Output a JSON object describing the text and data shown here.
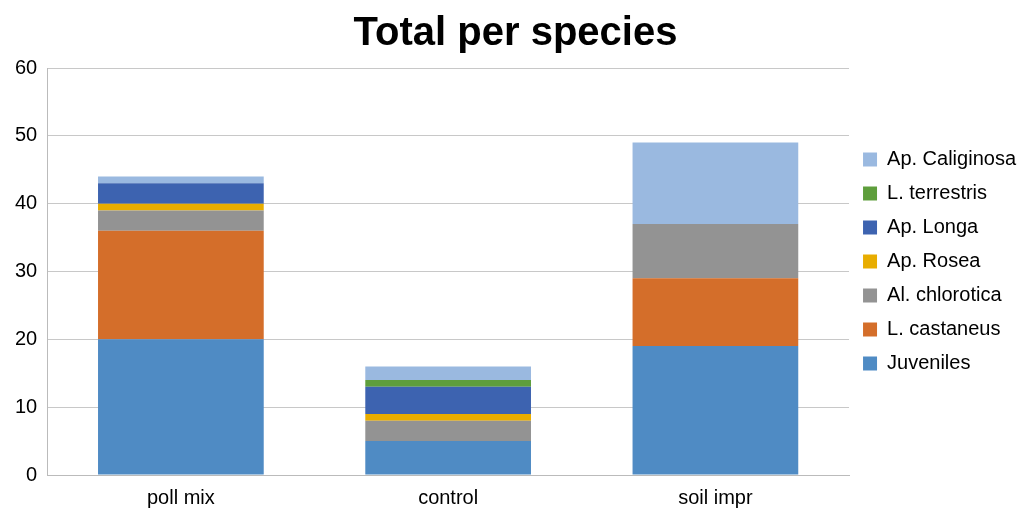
{
  "chart_data": {
    "type": "bar",
    "title": "Total per species",
    "categories": [
      "poll mix",
      "control",
      "soil impr"
    ],
    "stacked": true,
    "ylim": [
      0,
      60
    ],
    "yticks": [
      0,
      10,
      20,
      30,
      40,
      50,
      60
    ],
    "grid": "y",
    "legend": "right",
    "series": [
      {
        "name": "Juveniles",
        "color": "#4f8bc4",
        "values": [
          20,
          5,
          19
        ]
      },
      {
        "name": "L. castaneus",
        "color": "#d46e2a",
        "values": [
          16,
          0,
          10
        ]
      },
      {
        "name": "Al. chlorotica",
        "color": "#939393",
        "values": [
          3,
          3,
          8
        ]
      },
      {
        "name": "Ap. Rosea",
        "color": "#e8ad00",
        "values": [
          1,
          1,
          0
        ]
      },
      {
        "name": "Ap. Longa",
        "color": "#3d63b0",
        "values": [
          3,
          4,
          0
        ]
      },
      {
        "name": "L. terrestris",
        "color": "#5e9e3c",
        "values": [
          0,
          1,
          0
        ]
      },
      {
        "name": "Ap. Caliginosa",
        "color": "#9ab9e0",
        "values": [
          1,
          2,
          12
        ]
      }
    ]
  }
}
